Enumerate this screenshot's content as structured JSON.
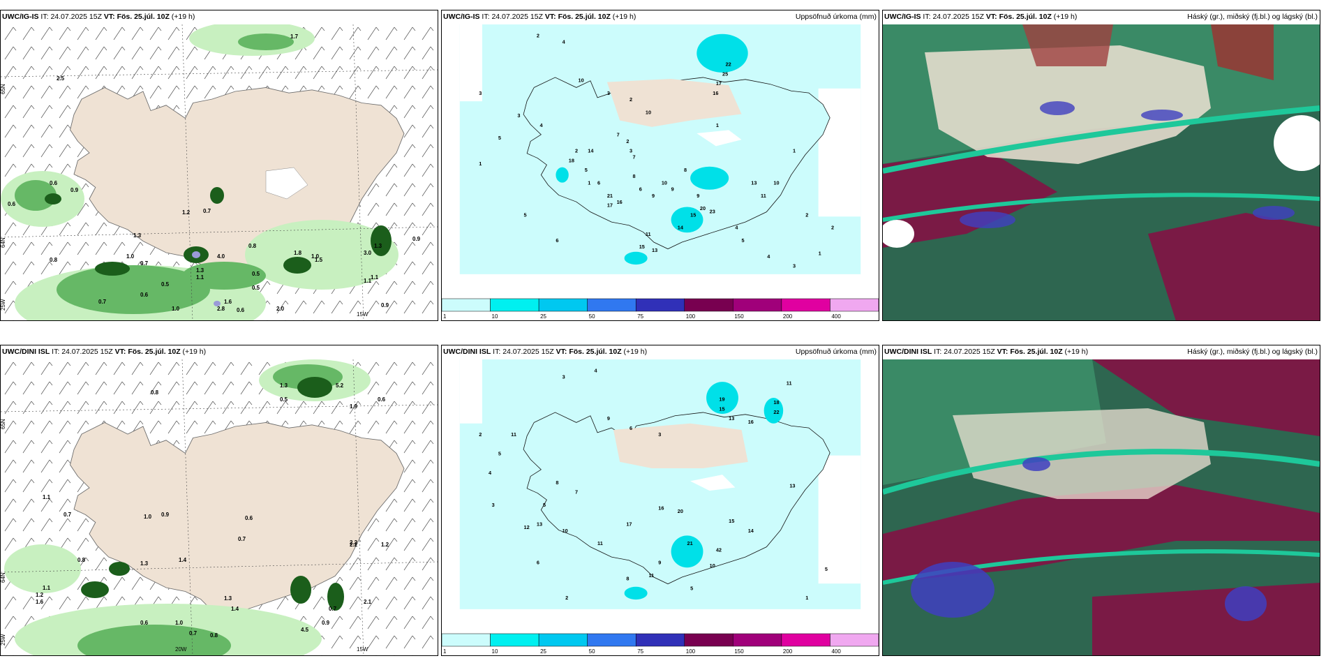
{
  "rows": [
    {
      "model": "UWC/IG-IS",
      "it_label": "IT:",
      "it_value": "24.07.2025 15Z",
      "vt_label": "VT:",
      "vt_value": "Fös. 25.júl. 10Z",
      "lead": "(+19 h)",
      "precip_values": [
        "2",
        "4",
        "3",
        "5",
        "1",
        "3",
        "10",
        "3",
        "2",
        "4",
        "2",
        "6",
        "7",
        "5",
        "1",
        "2",
        "3",
        "7",
        "10",
        "14",
        "18",
        "21",
        "17",
        "16",
        "8",
        "6",
        "9",
        "10",
        "9",
        "11",
        "15",
        "13",
        "14",
        "15",
        "20",
        "23",
        "25",
        "22",
        "17",
        "16",
        "8",
        "9",
        "1",
        "4",
        "5",
        "13",
        "11",
        "10",
        "1",
        "2",
        "2",
        "1",
        "3",
        "4",
        "5",
        "6"
      ],
      "wind_values": [
        "0.6",
        "0.9",
        "0.6",
        "0.8",
        "1.1",
        "1.2",
        "0.7",
        "1.3",
        "1.0",
        "0.7",
        "0.5",
        "0.6",
        "0.7",
        "0.5",
        "1.0",
        "1.6",
        "2.8",
        "0.6",
        "2.0",
        "1.8",
        "1.5",
        "0.5",
        "1.1",
        "0.9",
        "0.8",
        "1.0",
        "3.0",
        "1.3",
        "1.1",
        "0.9",
        "4.0",
        "1.3",
        "2.5",
        "1.7"
      ]
    },
    {
      "model": "UWC/DINI ISL",
      "it_label": "IT:",
      "it_value": "24.07.2025 15Z",
      "vt_label": "VT:",
      "vt_value": "Fös. 25.júl. 10Z",
      "lead": "(+19 h)",
      "precip_values": [
        "4",
        "3",
        "2",
        "5",
        "11",
        "9",
        "6",
        "3",
        "8",
        "7",
        "5",
        "12",
        "13",
        "10",
        "11",
        "16",
        "20",
        "17",
        "19",
        "15",
        "18",
        "22",
        "16",
        "13",
        "21",
        "42",
        "10",
        "9",
        "11",
        "5",
        "8",
        "4",
        "3",
        "6",
        "2",
        "1",
        "5",
        "11",
        "13",
        "14",
        "15"
      ],
      "wind_values": [
        "0.8",
        "1.1",
        "0.7",
        "1.0",
        "0.9",
        "0.6",
        "0.7",
        "1.3",
        "1.4",
        "0.8",
        "1.1",
        "1.2",
        "1.6",
        "2.2",
        "1.2",
        "0.5",
        "1.3",
        "0.7",
        "0.9",
        "0.8",
        "1.3",
        "1.4",
        "4.5",
        "0.6",
        "1.0",
        "0.7",
        "1.9",
        "2.2",
        "0.6",
        "5.2",
        "2.1"
      ]
    }
  ],
  "precip_title": "Uppsöfnuð úrkoma (mm)",
  "cloud_title": "Háský (gr.), miðský (fj.bl.) og lágský (bl.)",
  "colorbar_ticks": [
    "1",
    "10",
    "25",
    "50",
    "75",
    "100",
    "150",
    "200",
    "400"
  ],
  "colorbar_colors": [
    "#ccfcfc",
    "#00f0f0",
    "#00c8f0",
    "#3078f0",
    "#3030b8",
    "#780050",
    "#a0007a",
    "#e000a0",
    "#f0a8f0"
  ],
  "lat_lon_labels": {
    "lat_65": "65N",
    "lat_64": "64N",
    "lon_25": "25W",
    "lon_20": "20W",
    "lon_15": "15W"
  }
}
